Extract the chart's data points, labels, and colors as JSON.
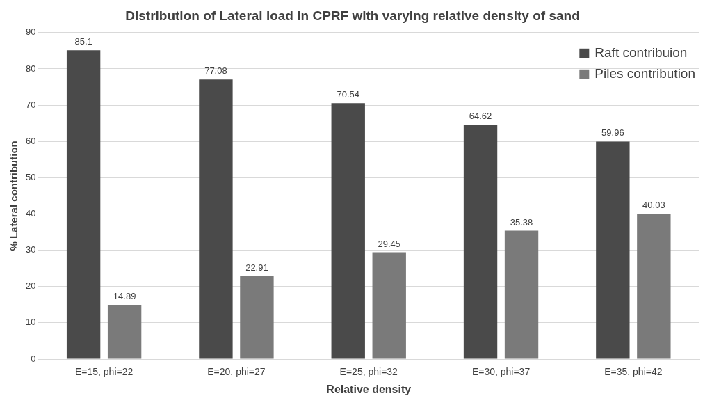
{
  "chart_data": {
    "type": "bar",
    "title": "Distribution of Lateral load in CPRF with varying relative density of sand",
    "xlabel": "Relative density",
    "ylabel": "% Lateral contribution",
    "categories": [
      "E=15, phi=22",
      "E=20, phi=27",
      "E=25, phi=32",
      "E=30, phi=37",
      "E=35, phi=42"
    ],
    "series": [
      {
        "name": "Raft contribuion",
        "color": "#4a4a4a",
        "values": [
          85.1,
          77.08,
          70.54,
          64.62,
          59.96
        ]
      },
      {
        "name": "Piles contribution",
        "color": "#7a7a7a",
        "values": [
          14.89,
          22.91,
          29.45,
          35.38,
          40.03
        ]
      }
    ],
    "ylim": [
      0,
      90
    ],
    "yticks": [
      0,
      10,
      20,
      30,
      40,
      50,
      60,
      70,
      80,
      90
    ],
    "grid": "y",
    "legend": "top right",
    "data_labels": true
  }
}
